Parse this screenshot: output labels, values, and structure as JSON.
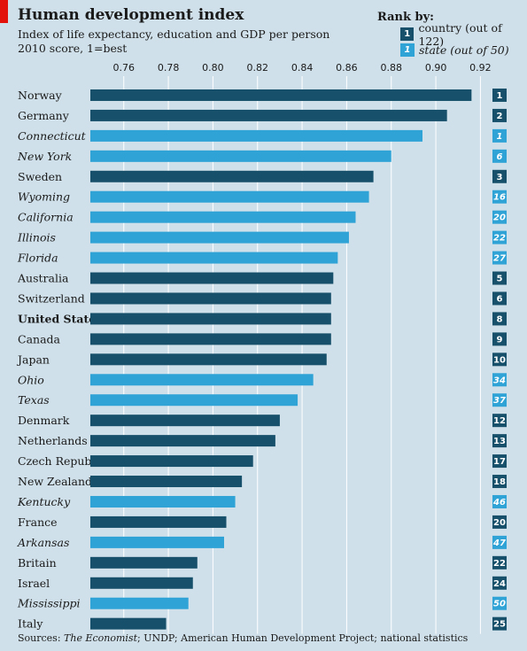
{
  "colors": {
    "country": "#17506a",
    "state": "#2fa3d6",
    "background": "#cfe0ea",
    "grid": "#ffffff",
    "accent": "#e3120b"
  },
  "legend": {
    "title": "Rank by:",
    "country_badge": "1",
    "country_label": "country (out of 122)",
    "state_badge": "1",
    "state_label": "state (out of 50)"
  },
  "sources": {
    "prefix": "Sources: ",
    "italic": "The Economist",
    "suffix": "; UNDP; American Human Development Project; national statistics"
  },
  "chart_data": {
    "type": "bar",
    "orientation": "horizontal",
    "title": "Human development index",
    "subtitle": "Index of life expectancy, education and GDP per person",
    "subtitle2": "2010 score, 1=best",
    "xlim": [
      0.745,
      0.925
    ],
    "ticks": [
      0.76,
      0.78,
      0.8,
      0.82,
      0.84,
      0.86,
      0.88,
      0.9,
      0.92
    ],
    "tick_labels": [
      "0.76",
      "0.78",
      "0.80",
      "0.82",
      "0.84",
      "0.86",
      "0.88",
      "0.90",
      "0.92"
    ],
    "grid": true,
    "legend_position": "top-right",
    "categories": [
      "Norway",
      "Germany",
      "Connecticut",
      "New York",
      "Sweden",
      "Wyoming",
      "California",
      "Illinois",
      "Florida",
      "Australia",
      "Switzerland",
      "United States",
      "Canada",
      "Japan",
      "Ohio",
      "Texas",
      "Denmark",
      "Netherlands",
      "Czech Republic",
      "New Zealand",
      "Kentucky",
      "France",
      "Arkansas",
      "Britain",
      "Israel",
      "Mississippi",
      "Italy"
    ],
    "values": [
      0.916,
      0.905,
      0.894,
      0.88,
      0.872,
      0.87,
      0.864,
      0.861,
      0.856,
      0.854,
      0.853,
      0.853,
      0.853,
      0.851,
      0.845,
      0.838,
      0.83,
      0.828,
      0.818,
      0.813,
      0.81,
      0.806,
      0.805,
      0.793,
      0.791,
      0.789,
      0.779
    ],
    "kind": [
      "country",
      "country",
      "state",
      "state",
      "country",
      "state",
      "state",
      "state",
      "state",
      "country",
      "country",
      "country",
      "country",
      "country",
      "state",
      "state",
      "country",
      "country",
      "country",
      "country",
      "state",
      "country",
      "state",
      "country",
      "country",
      "state",
      "country"
    ],
    "ranks": [
      "1",
      "2",
      "1",
      "6",
      "3",
      "16",
      "20",
      "22",
      "27",
      "5",
      "6",
      "8",
      "9",
      "10",
      "34",
      "37",
      "12",
      "13",
      "17",
      "18",
      "46",
      "20",
      "47",
      "22",
      "24",
      "50",
      "25"
    ],
    "highlight": "United States"
  }
}
